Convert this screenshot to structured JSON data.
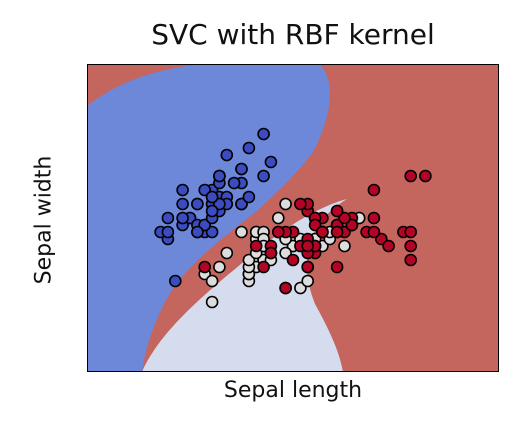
{
  "chart_data": {
    "type": "scatter",
    "title": "SVC with RBF kernel",
    "xlabel": "Sepal length",
    "ylabel": "Sepal width",
    "xlim": [
      3.3,
      8.9
    ],
    "ylim": [
      1.0,
      5.4
    ],
    "xticks": [],
    "yticks": [],
    "grid": false,
    "colors": {
      "region_blue": "#6d88d8",
      "region_light": "#d4dced",
      "region_red": "#c4655e",
      "point_blue": "#3b4cc0",
      "point_light": "#dddddd",
      "point_red": "#b40426",
      "edge": "#000000"
    },
    "series": [
      {
        "class": 0,
        "color": "#3b4cc0",
        "points": [
          [
            5.1,
            3.5
          ],
          [
            4.9,
            3.0
          ],
          [
            4.7,
            3.2
          ],
          [
            4.6,
            3.1
          ],
          [
            5.0,
            3.6
          ],
          [
            5.4,
            3.9
          ],
          [
            4.6,
            3.4
          ],
          [
            5.0,
            3.4
          ],
          [
            4.4,
            2.9
          ],
          [
            4.9,
            3.1
          ],
          [
            5.4,
            3.7
          ],
          [
            4.8,
            3.4
          ],
          [
            4.8,
            3.0
          ],
          [
            4.3,
            3.0
          ],
          [
            5.8,
            4.0
          ],
          [
            5.7,
            4.4
          ],
          [
            5.4,
            3.9
          ],
          [
            5.1,
            3.5
          ],
          [
            5.7,
            3.8
          ],
          [
            5.1,
            3.8
          ],
          [
            5.4,
            3.4
          ],
          [
            5.1,
            3.7
          ],
          [
            4.6,
            3.6
          ],
          [
            5.1,
            3.3
          ],
          [
            4.8,
            3.4
          ],
          [
            5.0,
            3.0
          ],
          [
            5.0,
            3.4
          ],
          [
            5.2,
            3.5
          ],
          [
            5.2,
            3.4
          ],
          [
            4.7,
            3.2
          ],
          [
            4.8,
            3.1
          ],
          [
            5.4,
            3.4
          ],
          [
            5.2,
            4.1
          ],
          [
            5.5,
            4.2
          ],
          [
            4.9,
            3.1
          ],
          [
            5.0,
            3.2
          ],
          [
            5.5,
            3.5
          ],
          [
            4.9,
            3.6
          ],
          [
            4.4,
            3.0
          ],
          [
            5.1,
            3.4
          ],
          [
            5.0,
            3.5
          ],
          [
            4.5,
            2.3
          ],
          [
            4.4,
            3.2
          ],
          [
            5.0,
            3.5
          ],
          [
            5.1,
            3.8
          ],
          [
            4.8,
            3.0
          ],
          [
            5.1,
            3.8
          ],
          [
            4.6,
            3.2
          ],
          [
            5.3,
            3.7
          ],
          [
            5.0,
            3.3
          ]
        ]
      },
      {
        "class": 1,
        "color": "#dddddd",
        "points": [
          [
            7.0,
            3.2
          ],
          [
            6.4,
            3.2
          ],
          [
            6.9,
            3.1
          ],
          [
            5.5,
            2.3
          ],
          [
            6.5,
            2.8
          ],
          [
            5.7,
            2.8
          ],
          [
            6.3,
            3.3
          ],
          [
            4.9,
            2.4
          ],
          [
            6.6,
            2.9
          ],
          [
            5.2,
            2.7
          ],
          [
            5.0,
            2.0
          ],
          [
            5.9,
            3.0
          ],
          [
            6.0,
            2.2
          ],
          [
            6.1,
            2.9
          ],
          [
            5.6,
            2.9
          ],
          [
            6.7,
            3.1
          ],
          [
            5.6,
            3.0
          ],
          [
            5.8,
            2.7
          ],
          [
            6.2,
            2.2
          ],
          [
            5.6,
            2.5
          ],
          [
            5.9,
            3.2
          ],
          [
            6.1,
            2.8
          ],
          [
            6.3,
            2.5
          ],
          [
            6.1,
            2.8
          ],
          [
            6.4,
            2.9
          ],
          [
            6.6,
            3.0
          ],
          [
            6.8,
            2.8
          ],
          [
            6.7,
            3.0
          ],
          [
            6.0,
            2.9
          ],
          [
            5.7,
            2.6
          ],
          [
            5.5,
            2.4
          ],
          [
            5.5,
            2.4
          ],
          [
            5.8,
            2.7
          ],
          [
            6.0,
            2.7
          ],
          [
            5.4,
            3.0
          ],
          [
            6.0,
            3.4
          ],
          [
            6.7,
            3.1
          ],
          [
            6.3,
            2.3
          ],
          [
            5.6,
            3.0
          ],
          [
            5.5,
            2.5
          ],
          [
            5.5,
            2.6
          ],
          [
            6.1,
            3.0
          ],
          [
            5.8,
            2.6
          ],
          [
            5.0,
            2.3
          ],
          [
            5.6,
            2.7
          ],
          [
            5.7,
            3.0
          ],
          [
            5.7,
            2.9
          ],
          [
            6.2,
            2.9
          ],
          [
            5.1,
            2.5
          ],
          [
            5.7,
            2.8
          ]
        ]
      },
      {
        "class": 2,
        "color": "#b40426",
        "points": [
          [
            6.3,
            3.3
          ],
          [
            5.8,
            2.7
          ],
          [
            7.1,
            3.0
          ],
          [
            6.3,
            2.9
          ],
          [
            6.5,
            3.0
          ],
          [
            7.6,
            3.0
          ],
          [
            4.9,
            2.5
          ],
          [
            7.3,
            2.9
          ],
          [
            6.7,
            2.5
          ],
          [
            7.2,
            3.6
          ],
          [
            6.5,
            3.2
          ],
          [
            6.4,
            2.7
          ],
          [
            6.8,
            3.0
          ],
          [
            5.7,
            2.5
          ],
          [
            5.8,
            2.8
          ],
          [
            6.4,
            3.2
          ],
          [
            6.5,
            3.0
          ],
          [
            7.7,
            3.8
          ],
          [
            7.7,
            2.6
          ],
          [
            6.0,
            2.2
          ],
          [
            6.9,
            3.2
          ],
          [
            5.6,
            2.8
          ],
          [
            7.7,
            2.8
          ],
          [
            6.3,
            2.7
          ],
          [
            6.7,
            3.3
          ],
          [
            7.2,
            3.2
          ],
          [
            6.2,
            2.8
          ],
          [
            6.1,
            3.0
          ],
          [
            6.4,
            2.8
          ],
          [
            7.2,
            3.0
          ],
          [
            7.4,
            2.8
          ],
          [
            7.9,
            3.8
          ],
          [
            6.4,
            2.8
          ],
          [
            6.3,
            2.8
          ],
          [
            6.1,
            2.6
          ],
          [
            7.7,
            3.0
          ],
          [
            6.3,
            3.4
          ],
          [
            6.4,
            3.1
          ],
          [
            6.0,
            3.0
          ],
          [
            6.9,
            3.1
          ],
          [
            6.7,
            3.1
          ],
          [
            6.9,
            3.1
          ],
          [
            5.8,
            2.7
          ],
          [
            6.8,
            3.2
          ],
          [
            6.7,
            3.3
          ],
          [
            6.7,
            3.0
          ],
          [
            6.3,
            2.5
          ],
          [
            6.5,
            3.0
          ],
          [
            6.2,
            3.4
          ],
          [
            5.9,
            3.0
          ]
        ]
      }
    ]
  }
}
